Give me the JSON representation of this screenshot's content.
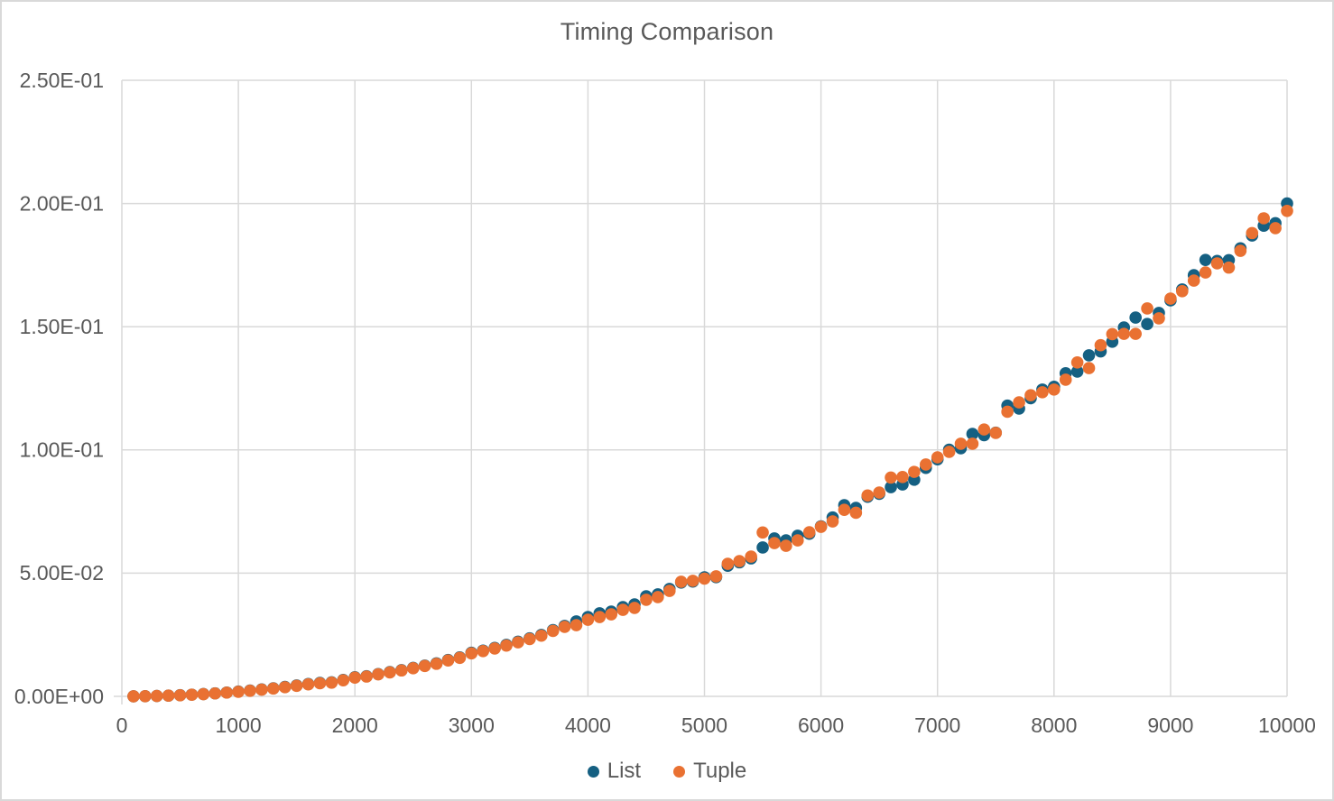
{
  "chart_data": {
    "type": "scatter",
    "title": "Timing Comparison",
    "xlabel": "",
    "ylabel": "",
    "xlim": [
      0,
      10000
    ],
    "ylim": [
      0,
      0.25
    ],
    "grid": true,
    "legend_position": "bottom",
    "colors": {
      "text": "#595959",
      "grid": "#d9d9d9",
      "background": "#ffffff"
    },
    "x_ticks": {
      "values": [
        0,
        1000,
        2000,
        3000,
        4000,
        5000,
        6000,
        7000,
        8000,
        9000,
        10000
      ],
      "labels": [
        "0",
        "1000",
        "2000",
        "3000",
        "4000",
        "5000",
        "6000",
        "7000",
        "8000",
        "9000",
        "10000"
      ]
    },
    "y_ticks": {
      "values": [
        0,
        0.05,
        0.1,
        0.15,
        0.2,
        0.25
      ],
      "labels": [
        "0.00E+00",
        "5.00E-02",
        "1.00E-01",
        "1.50E-01",
        "2.00E-01",
        "2.50E-01"
      ]
    },
    "x": [
      100,
      200,
      300,
      400,
      500,
      600,
      700,
      800,
      900,
      1000,
      1100,
      1200,
      1300,
      1400,
      1500,
      1600,
      1700,
      1800,
      1900,
      2000,
      2100,
      2200,
      2300,
      2400,
      2500,
      2600,
      2700,
      2800,
      2900,
      3000,
      3100,
      3200,
      3300,
      3400,
      3500,
      3600,
      3700,
      3800,
      3900,
      4000,
      4100,
      4200,
      4300,
      4400,
      4500,
      4600,
      4700,
      4800,
      4900,
      5000,
      5100,
      5200,
      5300,
      5400,
      5500,
      5600,
      5700,
      5800,
      5900,
      6000,
      6100,
      6200,
      6300,
      6400,
      6500,
      6600,
      6700,
      6800,
      6900,
      7000,
      7100,
      7200,
      7300,
      7400,
      7500,
      7600,
      7700,
      7800,
      7900,
      8000,
      8100,
      8200,
      8300,
      8400,
      8500,
      8600,
      8700,
      8800,
      8900,
      9000,
      9100,
      9200,
      9300,
      9400,
      9500,
      9600,
      9700,
      9800,
      9900,
      10000
    ],
    "series": [
      {
        "name": "List",
        "color": "#156082",
        "values": [
          3e-05,
          7e-05,
          0.00016,
          0.00029,
          0.00047,
          0.00069,
          0.00094,
          0.00123,
          0.00156,
          0.00193,
          0.00234,
          0.0028,
          0.00329,
          0.00382,
          0.0044,
          0.00501,
          0.00545,
          0.0057,
          0.00668,
          0.00775,
          0.00815,
          0.00905,
          0.00985,
          0.01065,
          0.01155,
          0.01245,
          0.0134,
          0.01475,
          0.0158,
          0.01768,
          0.01858,
          0.01965,
          0.0209,
          0.02218,
          0.02355,
          0.0249,
          0.0269,
          0.0286,
          0.0304,
          0.0322,
          0.0337,
          0.0344,
          0.0362,
          0.0373,
          0.0406,
          0.0414,
          0.0436,
          0.0462,
          0.0466,
          0.0483,
          0.0484,
          0.053,
          0.0544,
          0.056,
          0.0604,
          0.0641,
          0.0633,
          0.0652,
          0.066,
          0.069,
          0.0726,
          0.0776,
          0.0765,
          0.081,
          0.0822,
          0.0849,
          0.086,
          0.0879,
          0.0927,
          0.0962,
          0.1001,
          0.1007,
          0.1065,
          0.106,
          0.107,
          0.118,
          0.1168,
          0.121,
          0.1245,
          0.1256,
          0.1311,
          0.1318,
          0.1384,
          0.14,
          0.1439,
          0.1497,
          0.1537,
          0.1511,
          0.1556,
          0.1607,
          0.1651,
          0.1709,
          0.1771,
          0.1767,
          0.177,
          0.1818,
          0.187,
          0.191,
          0.192,
          0.2
        ]
      },
      {
        "name": "Tuple",
        "color": "#E97132",
        "values": [
          3e-05,
          7e-05,
          0.00015,
          0.00028,
          0.00045,
          0.00066,
          0.00091,
          0.00119,
          0.00151,
          0.00187,
          0.00227,
          0.00271,
          0.00319,
          0.00371,
          0.00427,
          0.00487,
          0.00531,
          0.00556,
          0.00652,
          0.0076,
          0.00805,
          0.00893,
          0.00972,
          0.01052,
          0.01143,
          0.01233,
          0.01322,
          0.01458,
          0.01562,
          0.01745,
          0.01838,
          0.01944,
          0.02062,
          0.02192,
          0.02328,
          0.02462,
          0.02655,
          0.0282,
          0.0289,
          0.0311,
          0.0322,
          0.0333,
          0.0351,
          0.0359,
          0.0392,
          0.0403,
          0.0428,
          0.0465,
          0.0469,
          0.0478,
          0.0487,
          0.0538,
          0.0549,
          0.0567,
          0.0665,
          0.0622,
          0.0611,
          0.0633,
          0.0666,
          0.0688,
          0.071,
          0.0757,
          0.0745,
          0.0815,
          0.0827,
          0.0888,
          0.089,
          0.0911,
          0.0941,
          0.097,
          0.0992,
          0.1025,
          0.1025,
          0.1083,
          0.1069,
          0.1155,
          0.1193,
          0.1222,
          0.1234,
          0.1245,
          0.1285,
          0.1355,
          0.1332,
          0.1425,
          0.147,
          0.1471,
          0.1471,
          0.1574,
          0.1534,
          0.1614,
          0.1644,
          0.1687,
          0.172,
          0.1757,
          0.174,
          0.1808,
          0.188,
          0.194,
          0.19,
          0.197
        ]
      }
    ]
  },
  "legend": {
    "items": [
      {
        "label": "List"
      },
      {
        "label": "Tuple"
      }
    ]
  }
}
